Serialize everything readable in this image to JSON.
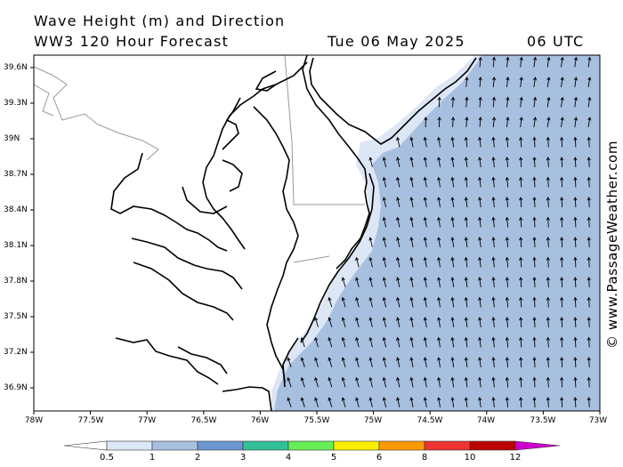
{
  "header": {
    "title": "Wave Height (m) and Direction",
    "forecast": "WW3 120 Hour Forecast",
    "date": "Tue 06 May 2025",
    "time": "06 UTC"
  },
  "watermark": "© www.PassageWeather.com",
  "axes": {
    "lat_labels": [
      "39.6N",
      "39.3N",
      "39N",
      "38.7N",
      "38.4N",
      "38.1N",
      "37.8N",
      "37.5N",
      "37.2N",
      "36.9N"
    ],
    "lon_labels": [
      "78W",
      "77.5W",
      "77W",
      "76.5W",
      "76W",
      "75.5W",
      "75W",
      "74.5W",
      "74W",
      "73.5W",
      "73W"
    ]
  },
  "colorbar": {
    "labels": [
      "0.5",
      "1",
      "2",
      "3",
      "4",
      "5",
      "6",
      "8",
      "10",
      "12"
    ],
    "colors": [
      "#dce6f5",
      "#a7c0e0",
      "#6c96d0",
      "#33c098",
      "#66ee55",
      "#ffee00",
      "#ff9900",
      "#ee3333",
      "#bb0000",
      "#cc00cc"
    ]
  },
  "colors": {
    "sea_wave_1_2m": "#a7c0e0",
    "sea_wave_0_5_1m": "#dce6f5",
    "land": "#ffffff",
    "coastline": "#000000",
    "border": "#999999"
  },
  "wave_direction": "north-northwest"
}
